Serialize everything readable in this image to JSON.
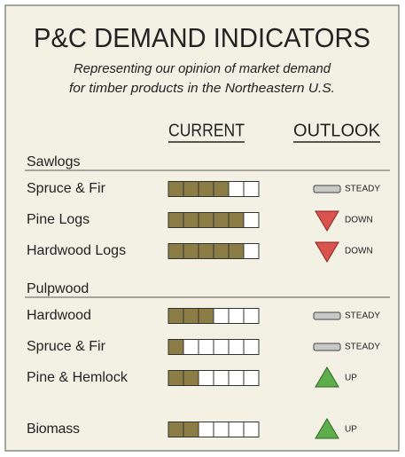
{
  "title": "P&C DEMAND INDICATORS",
  "subtitle": [
    "Representing our opinion of market demand",
    "for timber products in the Northeastern U.S."
  ],
  "columns": [
    "CURRENT",
    "OUTLOOK"
  ],
  "gauge_max": 6,
  "sections": [
    {
      "name": "Sawlogs",
      "rows": [
        {
          "label": "Spruce & Fir",
          "level": 4,
          "outlook": "STEADY"
        },
        {
          "label": "Pine Logs",
          "level": 5,
          "outlook": "DOWN"
        },
        {
          "label": "Hardwood Logs",
          "level": 5,
          "outlook": "DOWN"
        }
      ]
    },
    {
      "name": "Pulpwood",
      "rows": [
        {
          "label": "Hardwood",
          "level": 3,
          "outlook": "STEADY"
        },
        {
          "label": "Spruce & Fir",
          "level": 1,
          "outlook": "STEADY"
        },
        {
          "label": "Pine & Hemlock",
          "level": 2,
          "outlook": "UP"
        }
      ]
    }
  ],
  "biomass": {
    "label": "Biomass",
    "level": 2,
    "outlook": "UP"
  }
}
